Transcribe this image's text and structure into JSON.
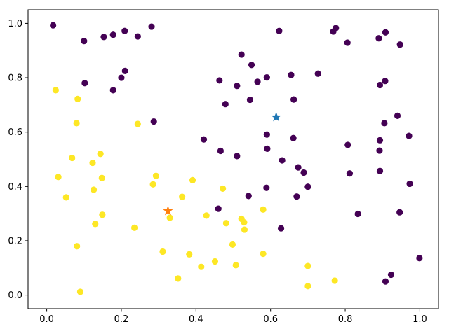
{
  "chart_data": {
    "type": "scatter",
    "title": "",
    "xlabel": "",
    "ylabel": "",
    "xlim": [
      -0.05,
      1.05
    ],
    "ylim": [
      -0.05,
      1.05
    ],
    "xticks": [
      "0.0",
      "0.2",
      "0.4",
      "0.6",
      "0.8",
      "1.0"
    ],
    "yticks": [
      "0.0",
      "0.2",
      "0.4",
      "0.6",
      "0.8",
      "1.0"
    ],
    "grid": false,
    "colors": {
      "class_0": "#440154",
      "class_1": "#fde725",
      "star_0": "#1f77b4",
      "star_1": "#ff7f0e"
    },
    "series": [
      {
        "marker": "circle",
        "color": "#440154",
        "points": [
          [
            0.017,
            0.993
          ],
          [
            0.1,
            0.935
          ],
          [
            0.153,
            0.95
          ],
          [
            0.178,
            0.958
          ],
          [
            0.209,
            0.972
          ],
          [
            0.244,
            0.952
          ],
          [
            0.281,
            0.988
          ],
          [
            0.102,
            0.78
          ],
          [
            0.178,
            0.754
          ],
          [
            0.2,
            0.8
          ],
          [
            0.21,
            0.825
          ],
          [
            0.287,
            0.639
          ],
          [
            0.463,
            0.79
          ],
          [
            0.479,
            0.703
          ],
          [
            0.51,
            0.77
          ],
          [
            0.522,
            0.885
          ],
          [
            0.549,
            0.847
          ],
          [
            0.565,
            0.785
          ],
          [
            0.545,
            0.719
          ],
          [
            0.59,
            0.801
          ],
          [
            0.623,
            0.972
          ],
          [
            0.655,
            0.81
          ],
          [
            0.662,
            0.72
          ],
          [
            0.727,
            0.815
          ],
          [
            0.768,
            0.97
          ],
          [
            0.775,
            0.983
          ],
          [
            0.806,
            0.929
          ],
          [
            0.89,
            0.945
          ],
          [
            0.908,
            0.967
          ],
          [
            0.947,
            0.922
          ],
          [
            0.893,
            0.773
          ],
          [
            0.907,
            0.788
          ],
          [
            0.905,
            0.633
          ],
          [
            0.94,
            0.66
          ],
          [
            0.971,
            0.586
          ],
          [
            0.893,
            0.57
          ],
          [
            0.892,
            0.532
          ],
          [
            0.893,
            0.457
          ],
          [
            0.973,
            0.41
          ],
          [
            0.946,
            0.305
          ],
          [
            0.807,
            0.553
          ],
          [
            0.812,
            0.448
          ],
          [
            0.834,
            0.299
          ],
          [
            0.999,
            0.136
          ],
          [
            0.923,
            0.075
          ],
          [
            0.908,
            0.05
          ],
          [
            0.421,
            0.573
          ],
          [
            0.466,
            0.531
          ],
          [
            0.51,
            0.512
          ],
          [
            0.59,
            0.591
          ],
          [
            0.591,
            0.539
          ],
          [
            0.631,
            0.496
          ],
          [
            0.661,
            0.578
          ],
          [
            0.674,
            0.47
          ],
          [
            0.689,
            0.451
          ],
          [
            0.7,
            0.399
          ],
          [
            0.67,
            0.363
          ],
          [
            0.589,
            0.395
          ],
          [
            0.541,
            0.365
          ],
          [
            0.46,
            0.318
          ],
          [
            0.628,
            0.246
          ]
        ]
      },
      {
        "marker": "circle",
        "color": "#fde725",
        "points": [
          [
            0.024,
            0.754
          ],
          [
            0.083,
            0.722
          ],
          [
            0.08,
            0.633
          ],
          [
            0.244,
            0.63
          ],
          [
            0.068,
            0.505
          ],
          [
            0.144,
            0.52
          ],
          [
            0.123,
            0.487
          ],
          [
            0.031,
            0.435
          ],
          [
            0.148,
            0.431
          ],
          [
            0.052,
            0.36
          ],
          [
            0.126,
            0.388
          ],
          [
            0.13,
            0.262
          ],
          [
            0.149,
            0.296
          ],
          [
            0.081,
            0.18
          ],
          [
            0.09,
            0.012
          ],
          [
            0.235,
            0.248
          ],
          [
            0.293,
            0.439
          ],
          [
            0.285,
            0.408
          ],
          [
            0.391,
            0.423
          ],
          [
            0.363,
            0.362
          ],
          [
            0.33,
            0.285
          ],
          [
            0.311,
            0.16
          ],
          [
            0.382,
            0.15
          ],
          [
            0.352,
            0.061
          ],
          [
            0.414,
            0.104
          ],
          [
            0.451,
            0.124
          ],
          [
            0.428,
            0.293
          ],
          [
            0.472,
            0.392
          ],
          [
            0.481,
            0.265
          ],
          [
            0.522,
            0.281
          ],
          [
            0.529,
            0.268
          ],
          [
            0.53,
            0.241
          ],
          [
            0.498,
            0.186
          ],
          [
            0.507,
            0.11
          ],
          [
            0.58,
            0.315
          ],
          [
            0.58,
            0.152
          ],
          [
            0.7,
            0.107
          ],
          [
            0.7,
            0.033
          ],
          [
            0.772,
            0.053
          ]
        ]
      },
      {
        "marker": "star",
        "color": "#1f77b4",
        "points": [
          [
            0.615,
            0.655
          ]
        ]
      },
      {
        "marker": "star",
        "color": "#ff7f0e",
        "points": [
          [
            0.325,
            0.31
          ]
        ]
      }
    ]
  }
}
